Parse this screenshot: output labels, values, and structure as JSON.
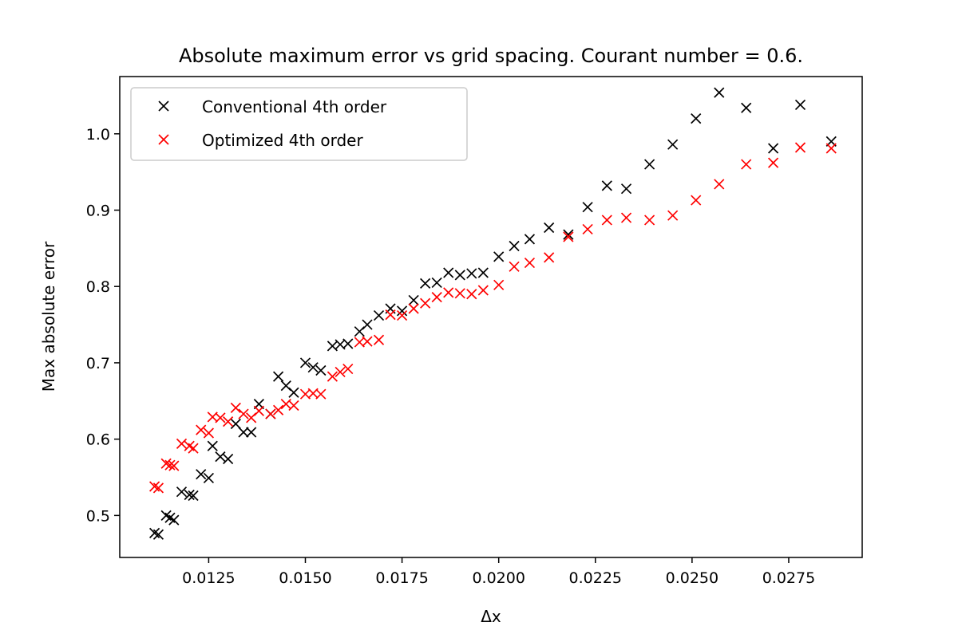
{
  "chart_data": {
    "type": "scatter",
    "title": "Absolute maximum error vs grid spacing. Courant number = 0.6.",
    "xlabel": "Δx",
    "ylabel": "Max absolute error",
    "xlim": [
      0.0102,
      0.0294
    ],
    "ylim": [
      0.445,
      1.075
    ],
    "xticks": [
      0.0125,
      0.015,
      0.0175,
      0.02,
      0.0225,
      0.025,
      0.0275
    ],
    "xtick_labels": [
      "0.0125",
      "0.0150",
      "0.0175",
      "0.0200",
      "0.0225",
      "0.0250",
      "0.0275"
    ],
    "yticks": [
      0.5,
      0.6,
      0.7,
      0.8,
      0.9,
      1.0
    ],
    "ytick_labels": [
      "0.5",
      "0.6",
      "0.7",
      "0.8",
      "0.9",
      "1.0"
    ],
    "grid": false,
    "legend_position": "top-left",
    "series": [
      {
        "name": "Conventional 4th order",
        "color": "#000000",
        "marker": "x",
        "x": [
          0.0111,
          0.0112,
          0.0114,
          0.0115,
          0.0116,
          0.0118,
          0.012,
          0.0121,
          0.0123,
          0.0125,
          0.0126,
          0.0128,
          0.013,
          0.0132,
          0.0134,
          0.0136,
          0.0138,
          0.0141,
          0.0143,
          0.0145,
          0.0147,
          0.015,
          0.0152,
          0.0154,
          0.0157,
          0.0159,
          0.0161,
          0.0164,
          0.0166,
          0.0169,
          0.0172,
          0.0175,
          0.0178,
          0.0181,
          0.0184,
          0.0187,
          0.019,
          0.0193,
          0.0196,
          0.02,
          0.0204,
          0.0208,
          0.0213,
          0.0218,
          0.0223,
          0.0228,
          0.0233,
          0.0239,
          0.0245,
          0.0251,
          0.0257,
          0.0264,
          0.0271,
          0.0278,
          0.0286
        ],
        "y": [
          0.477,
          0.475,
          0.5,
          0.497,
          0.494,
          0.531,
          0.527,
          0.526,
          0.554,
          0.549,
          0.591,
          0.577,
          0.574,
          0.62,
          0.609,
          0.609,
          0.646,
          0.633,
          0.682,
          0.67,
          0.661,
          0.7,
          0.694,
          0.69,
          0.722,
          0.724,
          0.725,
          0.741,
          0.75,
          0.762,
          0.771,
          0.768,
          0.782,
          0.804,
          0.805,
          0.818,
          0.815,
          0.817,
          0.818,
          0.839,
          0.853,
          0.862,
          0.877,
          0.868,
          0.904,
          0.932,
          0.928,
          0.96,
          0.986,
          1.02,
          1.054,
          1.034,
          0.981,
          1.038,
          0.99
        ]
      },
      {
        "name": "Optimized 4th order",
        "color": "#ff0000",
        "marker": "x",
        "x": [
          0.0111,
          0.0112,
          0.0114,
          0.0115,
          0.0116,
          0.0118,
          0.012,
          0.0121,
          0.0123,
          0.0125,
          0.0126,
          0.0128,
          0.013,
          0.0132,
          0.0134,
          0.0136,
          0.0138,
          0.0141,
          0.0143,
          0.0145,
          0.0147,
          0.015,
          0.0152,
          0.0154,
          0.0157,
          0.0159,
          0.0161,
          0.0164,
          0.0166,
          0.0169,
          0.0172,
          0.0175,
          0.0178,
          0.0181,
          0.0184,
          0.0187,
          0.019,
          0.0193,
          0.0196,
          0.02,
          0.0204,
          0.0208,
          0.0213,
          0.0218,
          0.0223,
          0.0228,
          0.0233,
          0.0239,
          0.0245,
          0.0251,
          0.0257,
          0.0264,
          0.0271,
          0.0278,
          0.0286
        ],
        "y": [
          0.538,
          0.536,
          0.568,
          0.566,
          0.565,
          0.594,
          0.591,
          0.588,
          0.612,
          0.608,
          0.629,
          0.628,
          0.623,
          0.641,
          0.633,
          0.628,
          0.637,
          0.633,
          0.638,
          0.646,
          0.644,
          0.659,
          0.66,
          0.659,
          0.682,
          0.688,
          0.692,
          0.727,
          0.728,
          0.73,
          0.763,
          0.762,
          0.771,
          0.778,
          0.786,
          0.792,
          0.791,
          0.79,
          0.795,
          0.802,
          0.826,
          0.831,
          0.838,
          0.865,
          0.875,
          0.887,
          0.89,
          0.887,
          0.893,
          0.913,
          0.934,
          0.96,
          0.962,
          0.982,
          0.981
        ]
      }
    ]
  }
}
